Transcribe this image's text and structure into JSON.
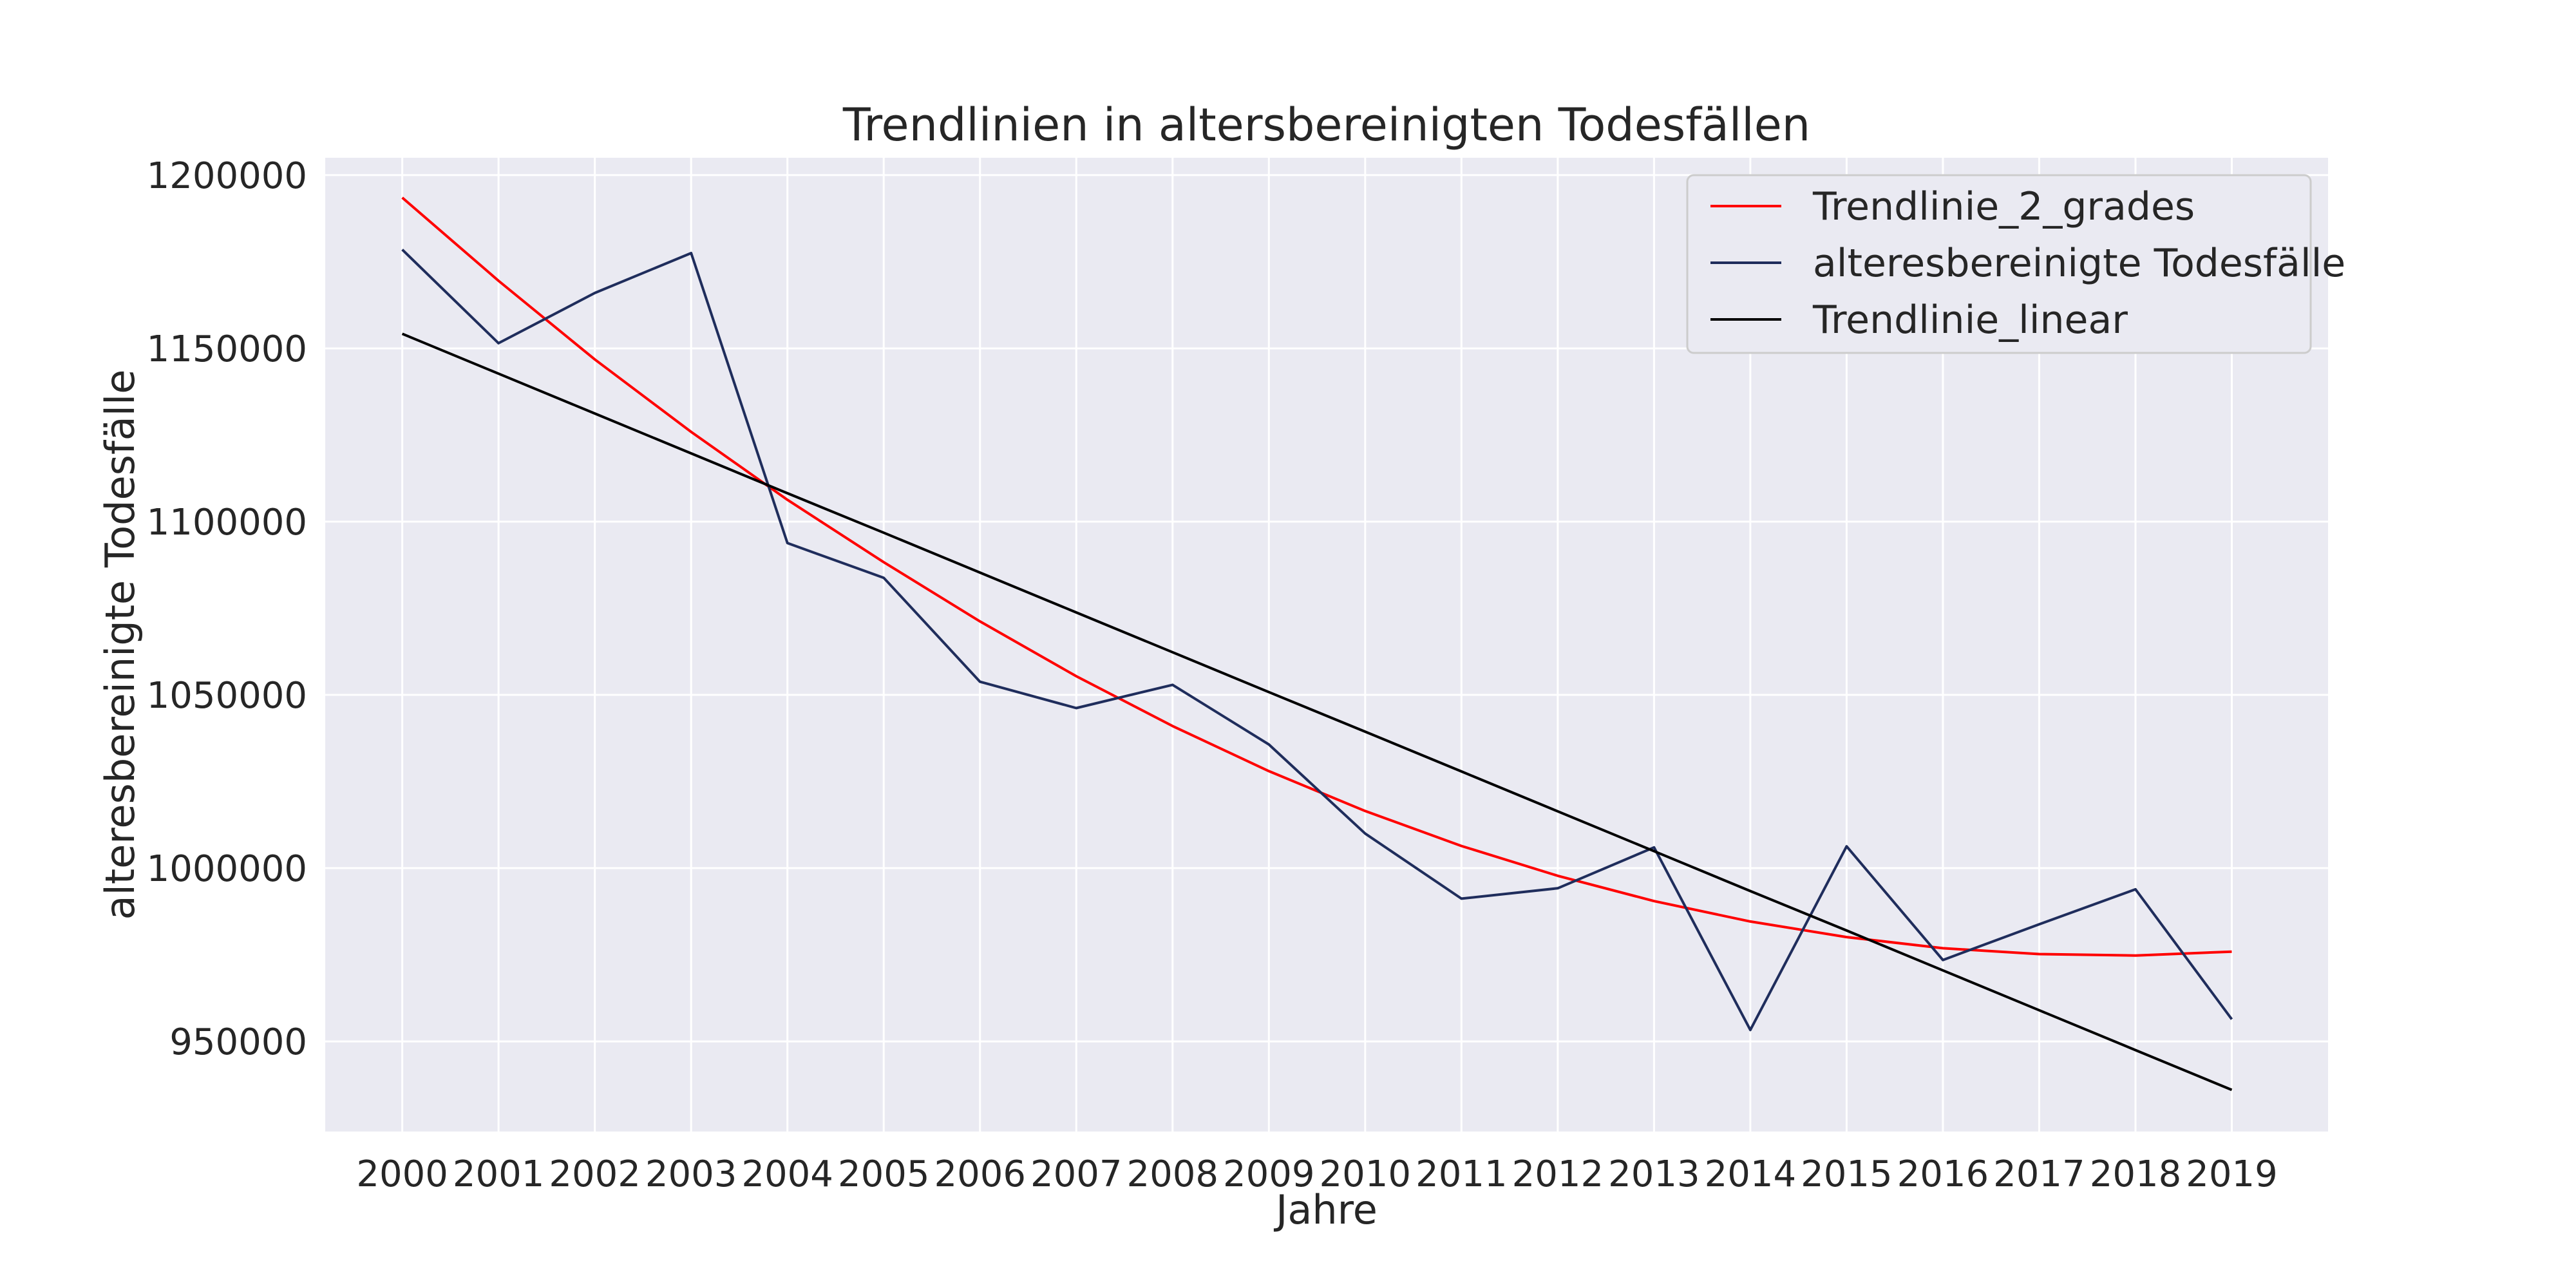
{
  "chart_data": {
    "type": "line",
    "title": "Trendlinien in altersbereinigten Todesfällen",
    "xlabel": "Jahre",
    "ylabel": "alteresbereinigte Todesfälle",
    "x": [
      2000,
      2001,
      2002,
      2003,
      2004,
      2005,
      2006,
      2007,
      2008,
      2009,
      2010,
      2011,
      2012,
      2013,
      2014,
      2015,
      2016,
      2017,
      2018,
      2019
    ],
    "yticks": [
      950000,
      1000000,
      1050000,
      1100000,
      1150000,
      1200000
    ],
    "ylim": [
      924000,
      1205000
    ],
    "xlim": [
      1999.2,
      2020.0
    ],
    "grid": true,
    "legend_position": "top-right",
    "series": [
      {
        "name": "Trendlinie_2_grades",
        "color": "#ff0000",
        "values": [
          1193500,
          1169500,
          1146800,
          1125900,
          1106300,
          1088300,
          1071200,
          1055400,
          1041000,
          1028000,
          1016500,
          1006400,
          997800,
          990500,
          984600,
          980100,
          976900,
          975200,
          974800,
          975900
        ]
      },
      {
        "name": "alteresbereinigte Todesfälle",
        "color": "#1f2d5c",
        "values": [
          1178500,
          1151500,
          1166000,
          1177500,
          1093800,
          1083800,
          1053800,
          1046200,
          1052900,
          1035700,
          1010000,
          991200,
          994200,
          1006000,
          953300,
          1006300,
          973500,
          983800,
          993900,
          956400
        ]
      },
      {
        "name": "Trendlinie_linear",
        "color": "#000000",
        "values": [
          1154200,
          1142700,
          1131200,
          1119700,
          1108200,
          1096800,
          1085300,
          1073800,
          1062300,
          1050800,
          1039400,
          1027900,
          1016400,
          1004900,
          993400,
          982000,
          970500,
          959000,
          947500,
          936000
        ]
      }
    ]
  }
}
